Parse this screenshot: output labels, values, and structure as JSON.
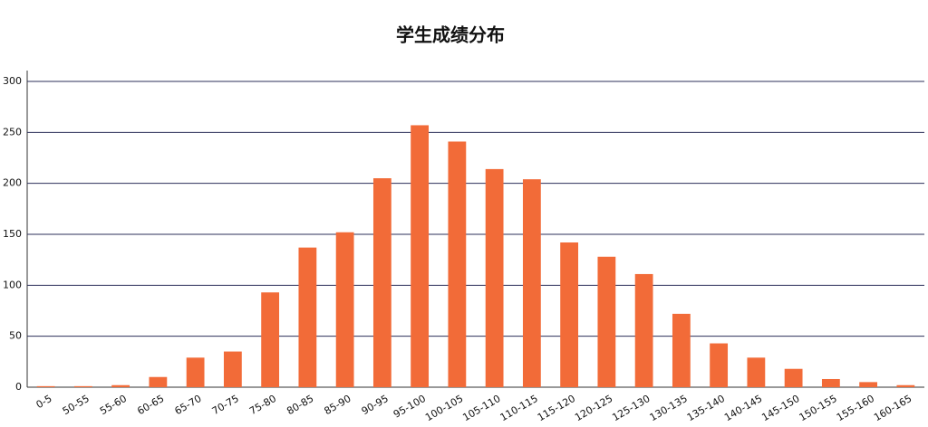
{
  "chart_data": {
    "type": "bar",
    "title": "学生成绩分布",
    "categories": [
      "0-5",
      "50-55",
      "55-60",
      "60-65",
      "65-70",
      "70-75",
      "75-80",
      "80-85",
      "85-90",
      "90-95",
      "95-100",
      "100-105",
      "105-110",
      "110-115",
      "115-120",
      "120-125",
      "125-130",
      "130-135",
      "135-140",
      "140-145",
      "145-150",
      "150-155",
      "155-160",
      "160-165"
    ],
    "values": [
      1,
      1,
      2,
      10,
      29,
      35,
      93,
      137,
      152,
      205,
      257,
      241,
      214,
      204,
      142,
      128,
      111,
      72,
      43,
      29,
      18,
      8,
      5,
      2
    ],
    "color": "#f26b38",
    "ylim": [
      0,
      300
    ],
    "yticks": [
      0,
      50,
      100,
      150,
      200,
      250,
      300
    ],
    "grid": true
  }
}
